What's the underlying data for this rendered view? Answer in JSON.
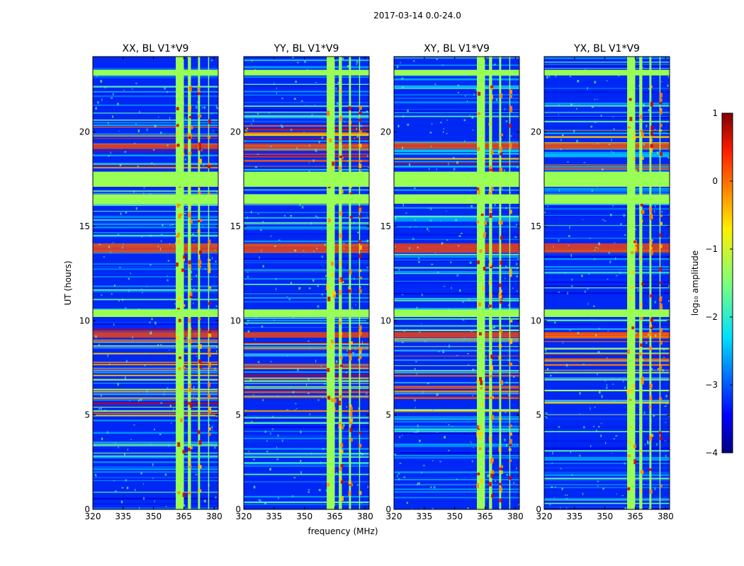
{
  "chart_data": {
    "type": "heatmap",
    "suptitle": "2017-03-14 0.0-24.0",
    "xlabel": "frequency (MHz)",
    "ylabel": "UT (hours)",
    "xlim": [
      320,
      382
    ],
    "ylim": [
      0,
      24
    ],
    "xticks": [
      320,
      335,
      350,
      365,
      380
    ],
    "yticks": [
      0,
      5,
      10,
      15,
      20
    ],
    "panels": [
      {
        "title": "XX, BL V1*V9"
      },
      {
        "title": "YY, BL V1*V9"
      },
      {
        "title": "XY, BL V1*V9"
      },
      {
        "title": "YX, BL V1*V9"
      }
    ],
    "colorbar": {
      "label": "log₁₀ amplitude",
      "range": [
        -4,
        1
      ],
      "ticks": [
        "1",
        "0",
        "−1",
        "−2",
        "−3",
        "−4"
      ],
      "colormap": "jet"
    },
    "flagged_time_bands_hours": [
      [
        23.0,
        23.3
      ],
      [
        17.1,
        17.9
      ],
      [
        16.2,
        16.7
      ],
      [
        10.2,
        10.6
      ]
    ],
    "flagged_channel_bands_mhz": [
      [
        361.0,
        365.0
      ],
      [
        367.0,
        368.5
      ],
      [
        372.0,
        373.0
      ],
      [
        377.0,
        377.5
      ]
    ],
    "strong_time_bands_hours": [
      [
        13.6,
        14.1
      ],
      [
        19.1,
        19.4
      ],
      [
        9.1,
        9.4
      ]
    ],
    "nan_color": "#99ff55"
  }
}
